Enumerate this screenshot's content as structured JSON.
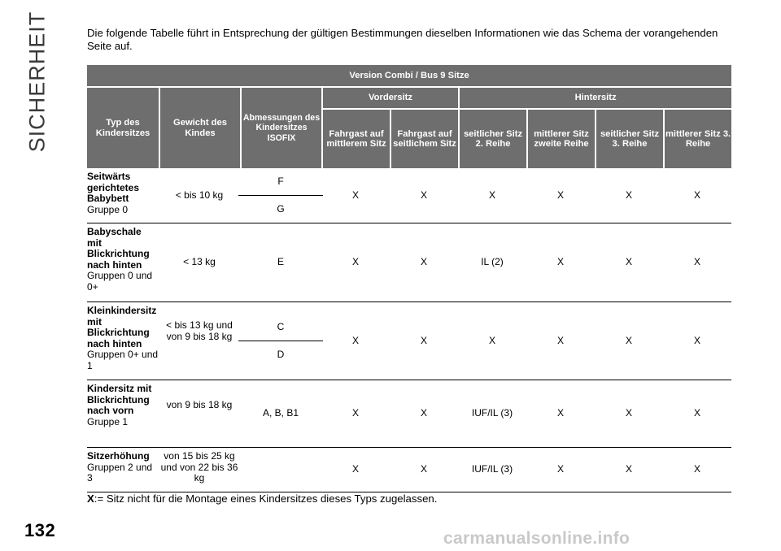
{
  "side_title": "SICHERHEIT",
  "page_number": "132",
  "watermark": "carmanualsonline.info",
  "intro": "Die folgende Tabelle führt in Entsprechung der gültigen Bestimmungen dieselben Informationen wie das Schema der vorangehenden Seite auf.",
  "table": {
    "version_title": "Version Combi / Bus 9 Sitze",
    "headers": {
      "type": "Typ des Kindersitzes",
      "weight": "Gewicht des Kindes",
      "dims": "Abmessungen des Kindersitzes ISOFIX",
      "front_group": "Vordersitz",
      "rear_group": "Hintersitz",
      "cols": [
        "Fahrgast auf mittlerem Sitz",
        "Fahrgast auf seitlichem Sitz",
        "seitlicher Sitz 2. Reihe",
        "mittlerer Sitz zweite Reihe",
        "seitlicher Sitz 3. Reihe",
        "mittlerer Sitz 3. Reihe"
      ]
    },
    "rows": [
      {
        "type_bold": "Seitwärts gerichtetes Babybett",
        "type_group": "Gruppe 0",
        "weight": "< bis 10 kg",
        "dims_top": "F",
        "dims_bottom": "G",
        "values": [
          "X",
          "X",
          "X",
          "X",
          "X",
          "X"
        ]
      },
      {
        "type_bold": "Babyschale mit Blickrichtung nach hinten",
        "type_group": "Gruppen 0 und 0+",
        "weight": "< 13 kg",
        "dims": "E",
        "values": [
          "X",
          "X",
          "IL (2)",
          "X",
          "X",
          "X"
        ]
      },
      {
        "type_bold": "Kleinkindersitz mit Blickrichtung nach hinten",
        "type_group": "Gruppen 0+ und 1",
        "weight": "< bis 13 kg und von 9 bis 18 kg",
        "dims_top": "C",
        "dims_bottom": "D",
        "values": [
          "X",
          "X",
          "X",
          "X",
          "X",
          "X"
        ]
      },
      {
        "type_bold": "Kindersitz mit Blickrichtung nach vorn",
        "type_group": "Gruppe 1",
        "weight": "von 9 bis 18 kg",
        "dims": "A, B, B1",
        "values": [
          "X",
          "X",
          "IUF/IL (3)",
          "X",
          "X",
          "X"
        ]
      },
      {
        "type_bold": "Sitzerhöhung",
        "type_group": "Gruppen 2 und 3",
        "weight": "von 15 bis 25 kg und von 22 bis 36 kg",
        "dims": "",
        "values": [
          "X",
          "X",
          "IUF/IL (3)",
          "X",
          "X",
          "X"
        ]
      }
    ]
  },
  "footnote": {
    "key": "X",
    "text": ":= Sitz nicht für die Montage eines Kindersitzes dieses Typs zugelassen."
  }
}
